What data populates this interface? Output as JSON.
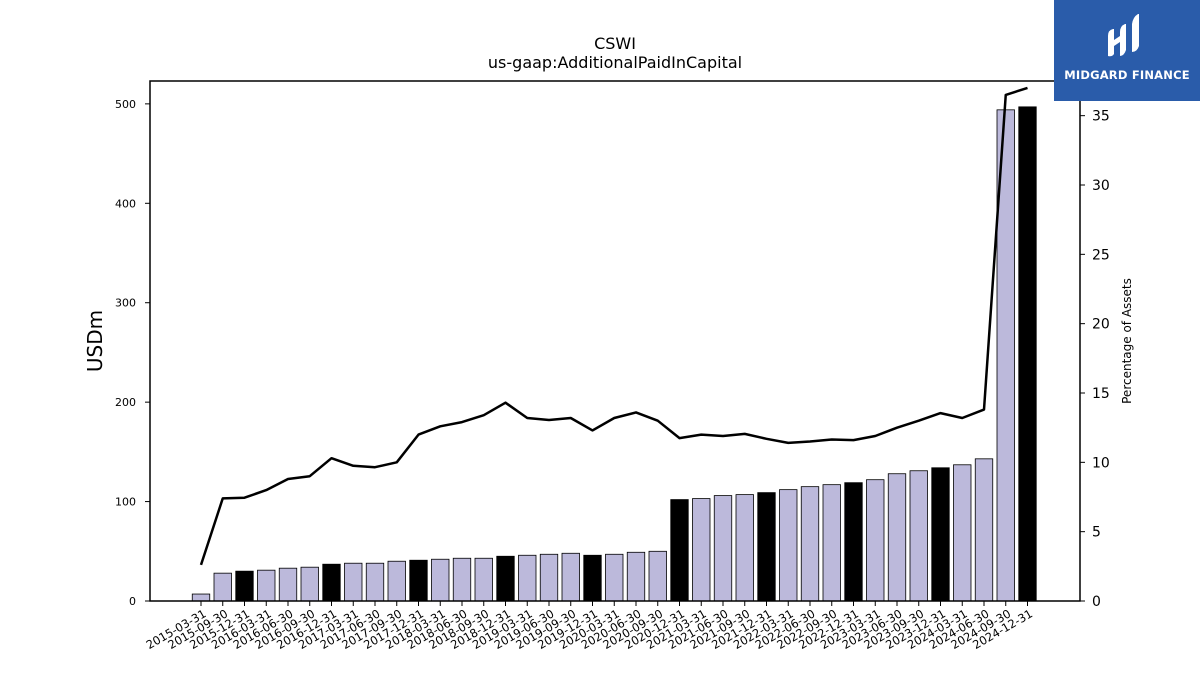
{
  "chart_data": {
    "type": "bar",
    "title": "CSWI",
    "subtitle": "us-gaap:AdditionalPaidInCapital",
    "ylabel": "USDm",
    "ylabel_right": "Percentage of Assets",
    "ylim": [
      0,
      523
    ],
    "ylim_right": [
      0,
      37.5
    ],
    "yticks": [
      0,
      100,
      200,
      300,
      400,
      500
    ],
    "yticks_right": [
      0,
      5,
      10,
      15,
      20,
      25,
      30,
      35
    ],
    "categories": [
      "2015-03-31",
      "2015-09-30",
      "2015-12-31",
      "2016-03-31",
      "2016-06-30",
      "2016-09-30",
      "2016-12-31",
      "2017-03-31",
      "2017-06-30",
      "2017-09-30",
      "2017-12-31",
      "2018-03-31",
      "2018-06-30",
      "2018-09-30",
      "2018-12-31",
      "2019-03-31",
      "2019-06-30",
      "2019-09-30",
      "2019-12-31",
      "2020-03-31",
      "2020-06-30",
      "2020-09-30",
      "2020-12-31",
      "2021-03-31",
      "2021-06-30",
      "2021-09-30",
      "2021-12-31",
      "2022-03-31",
      "2022-06-30",
      "2022-09-30",
      "2022-12-31",
      "2023-03-31",
      "2023-06-30",
      "2023-09-30",
      "2023-12-31",
      "2024-03-31",
      "2024-06-30",
      "2024-09-30",
      "2024-12-31"
    ],
    "series": [
      {
        "type": "bar",
        "values": [
          7,
          28,
          30,
          31,
          33,
          34,
          37,
          38,
          38,
          40,
          41,
          42,
          43,
          43,
          45,
          46,
          47,
          48,
          46,
          47,
          49,
          50,
          102,
          103,
          106,
          107,
          109,
          112,
          115,
          117,
          119,
          122,
          128,
          131,
          134,
          137,
          143,
          494,
          497
        ],
        "highlight": [
          false,
          false,
          true,
          false,
          false,
          false,
          true,
          false,
          false,
          false,
          true,
          false,
          false,
          false,
          true,
          false,
          false,
          false,
          true,
          false,
          false,
          false,
          true,
          false,
          false,
          false,
          true,
          false,
          false,
          false,
          true,
          false,
          false,
          false,
          true,
          false,
          false,
          false,
          true
        ]
      },
      {
        "type": "line",
        "axis": "right",
        "values": [
          2.6,
          7.4,
          7.45,
          8.0,
          8.8,
          9.0,
          10.3,
          9.75,
          9.65,
          10.0,
          12.0,
          12.6,
          12.9,
          13.4,
          14.3,
          13.2,
          13.05,
          13.2,
          12.3,
          13.2,
          13.6,
          13.0,
          11.75,
          12.0,
          11.9,
          12.05,
          11.7,
          11.4,
          11.5,
          11.65,
          11.6,
          11.9,
          12.5,
          13.0,
          13.55,
          13.2,
          13.8,
          36.5,
          37.0
        ]
      }
    ],
    "colors": {
      "bar": "#bcb9db",
      "bar_highlight": "#000000",
      "line": "#000000",
      "edge": "#000000"
    },
    "grid": false
  },
  "logo": {
    "text": "MIDGARD FINANCE",
    "background": "#2a5caa"
  }
}
